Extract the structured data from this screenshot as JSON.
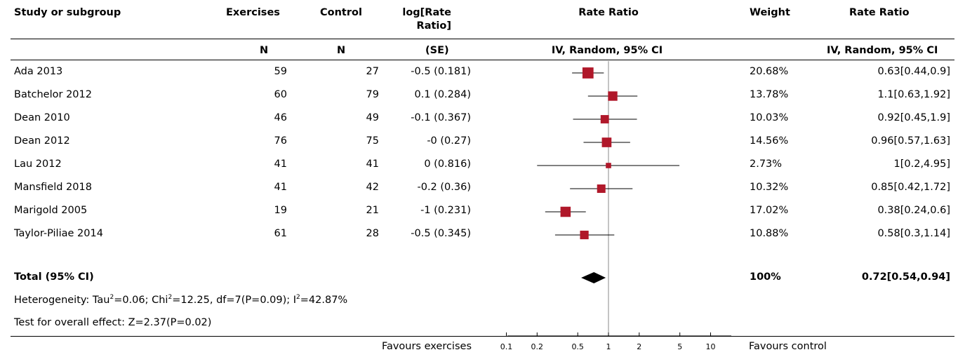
{
  "header": {
    "study": "Study or subgroup",
    "group1": "Exercises",
    "group2": "Control",
    "est_line1": "log[Rate",
    "est_line2": "Ratio]",
    "plot_title": "Rate Ratio",
    "weight": "Weight",
    "effect_title": "Rate Ratio"
  },
  "subheader": {
    "n1": "N",
    "n2": "N",
    "se": "(SE)",
    "plot_method": "IV, Random, 95% CI",
    "effect_method": "IV, Random, 95% CI"
  },
  "studies": [
    {
      "name": "Ada 2013",
      "n1": "59",
      "n2": "27",
      "est": "-0.5 (0.181)",
      "weight": "20.68%",
      "ci_text": "0.63[0.44,0.9]"
    },
    {
      "name": "Batchelor 2012",
      "n1": "60",
      "n2": "79",
      "est": "0.1 (0.284)",
      "weight": "13.78%",
      "ci_text": "1.1[0.63,1.92]"
    },
    {
      "name": "Dean 2010",
      "n1": "46",
      "n2": "49",
      "est": "-0.1 (0.367)",
      "weight": "10.03%",
      "ci_text": "0.92[0.45,1.9]"
    },
    {
      "name": "Dean 2012",
      "n1": "76",
      "n2": "75",
      "est": "-0 (0.27)",
      "weight": "14.56%",
      "ci_text": "0.96[0.57,1.63]"
    },
    {
      "name": "Lau 2012",
      "n1": "41",
      "n2": "41",
      "est": "0 (0.816)",
      "weight": "2.73%",
      "ci_text": "1[0.2,4.95]"
    },
    {
      "name": "Mansfield 2018",
      "n1": "41",
      "n2": "42",
      "est": "-0.2 (0.36)",
      "weight": "10.32%",
      "ci_text": "0.85[0.42,1.72]"
    },
    {
      "name": "Marigold 2005",
      "n1": "19",
      "n2": "21",
      "est": "-1 (0.231)",
      "weight": "17.02%",
      "ci_text": "0.38[0.24,0.6]"
    },
    {
      "name": "Taylor-Piliae 2014",
      "n1": "61",
      "n2": "28",
      "est": "-0.5 (0.345)",
      "weight": "10.88%",
      "ci_text": "0.58[0.3,1.14]"
    }
  ],
  "total": {
    "label": "Total (95% CI)",
    "weight": "100%",
    "ci_text": "0.72[0.54,0.94]"
  },
  "heterogeneity": {
    "prefix": "Heterogeneity: Tau",
    "tau_sup": "2",
    "tau_val": "=0.06; Chi",
    "chi_sup": "2",
    "chi_val": "=12.25, df=7(P=0.09); I",
    "i_sup": "2",
    "i_val": "=42.87%"
  },
  "overall_test": "Test for overall effect: Z=2.37(P=0.02)",
  "footer": {
    "favours_left": "Favours exercises",
    "favours_right": "Favours control"
  },
  "chart_data": {
    "type": "forest",
    "scale": "log",
    "xlim": [
      0.05,
      20
    ],
    "ticks": [
      "0.1",
      "0.2",
      "0.5",
      "1",
      "2",
      "5",
      "10"
    ],
    "tick_values": [
      0.1,
      0.2,
      0.5,
      1,
      2,
      5,
      10
    ],
    "reference_line": 1,
    "studies": [
      {
        "name": "Ada 2013",
        "estimate": 0.63,
        "lower": 0.44,
        "upper": 0.9,
        "weight_pct": 20.68
      },
      {
        "name": "Batchelor 2012",
        "estimate": 1.1,
        "lower": 0.63,
        "upper": 1.92,
        "weight_pct": 13.78
      },
      {
        "name": "Dean 2010",
        "estimate": 0.92,
        "lower": 0.45,
        "upper": 1.9,
        "weight_pct": 10.03
      },
      {
        "name": "Dean 2012",
        "estimate": 0.96,
        "lower": 0.57,
        "upper": 1.63,
        "weight_pct": 14.56
      },
      {
        "name": "Lau 2012",
        "estimate": 1,
        "lower": 0.2,
        "upper": 4.95,
        "weight_pct": 2.73
      },
      {
        "name": "Mansfield 2018",
        "estimate": 0.85,
        "lower": 0.42,
        "upper": 1.72,
        "weight_pct": 10.32
      },
      {
        "name": "Marigold 2005",
        "estimate": 0.38,
        "lower": 0.24,
        "upper": 0.6,
        "weight_pct": 17.02
      },
      {
        "name": "Taylor-Piliae 2014",
        "estimate": 0.58,
        "lower": 0.3,
        "upper": 1.14,
        "weight_pct": 10.88
      }
    ],
    "pooled": {
      "estimate": 0.72,
      "lower": 0.54,
      "upper": 0.94
    },
    "colors": {
      "marker": "#b0182a",
      "diamond": "#000000",
      "line": "#000000",
      "reference": "#888888"
    }
  }
}
